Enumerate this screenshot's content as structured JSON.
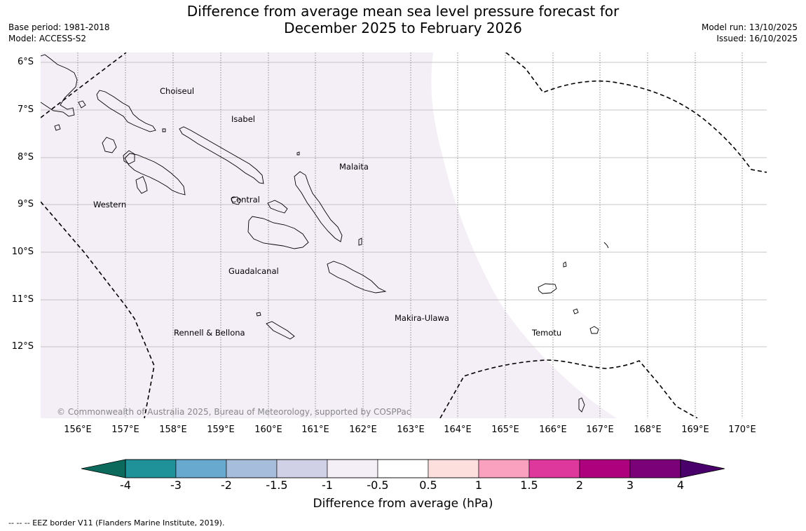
{
  "title": {
    "line1": "Difference from average mean sea level pressure forecast for",
    "line2": "December 2025 to February 2026"
  },
  "meta": {
    "base_period": "Base period: 1981-2018",
    "model": "Model: ACCESS-S2",
    "model_run": "Model run: 13/10/2025",
    "issued": "Issued: 16/10/2025"
  },
  "axes": {
    "latitude_labels": [
      "6°S",
      "7°S",
      "8°S",
      "9°S",
      "10°S",
      "11°S",
      "12°S"
    ],
    "longitude_labels": [
      "156°E",
      "157°E",
      "158°E",
      "159°E",
      "160°E",
      "161°E",
      "162°E",
      "163°E",
      "164°E",
      "165°E",
      "166°E",
      "167°E",
      "168°E",
      "169°E",
      "170°E"
    ]
  },
  "regions": {
    "choiseul": "Choiseul",
    "isabel": "Isabel",
    "malaita": "Malaita",
    "western": "Western",
    "central": "Central",
    "guadalcanal": "Guadalcanal",
    "makira_ulawa": "Makira-Ulawa",
    "rennell_bellona": "Rennell & Bellona",
    "temotu": "Temotu"
  },
  "copyright": "© Commonwealth of Australia 2025, Bureau of Meteorology, supported by COSPPac",
  "colorbar": {
    "label": "Difference from average (hPa)",
    "ticks": [
      "-4",
      "-3",
      "-2",
      "-1.5",
      "-1",
      "-0.5",
      "0.5",
      "1",
      "1.5",
      "2",
      "3",
      "4"
    ],
    "colors": {
      "below_min": "#0c6a5c",
      "bin_-4_-3": "#1f9299",
      "bin_-3_-2": "#67a9cf",
      "bin_-2_-1.5": "#a6bddb",
      "bin_-1.5_-1": "#d0d1e6",
      "bin_-1_-0.5": "#f4eef7",
      "bin_-0.5_0.5": "#ffffff",
      "bin_0.5_1": "#fddfde",
      "bin_1_1.5": "#f9a1be",
      "bin_1.5_2": "#de389c",
      "bin_2_3": "#ae017e",
      "bin_3_4": "#7a0177",
      "above_max": "#49006a"
    }
  },
  "footnote": "-- -- -- EEZ border V11 (Flanders Marine Institute, 2019)."
}
